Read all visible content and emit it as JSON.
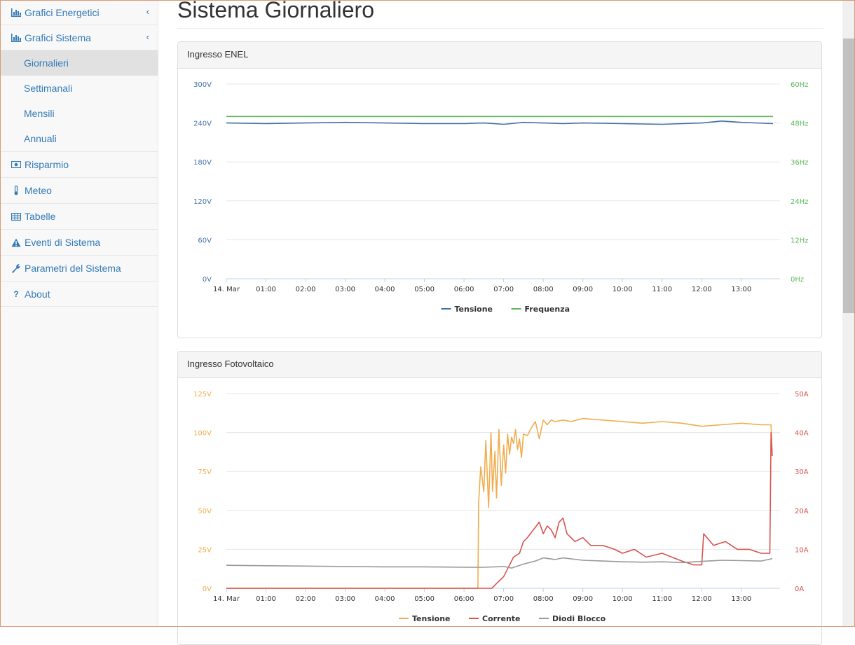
{
  "sidebar": {
    "items": [
      {
        "label": "Grafici Energetici",
        "icon": "bar-chart-icon",
        "chevron": "‹"
      },
      {
        "label": "Grafici Sistema",
        "icon": "bar-chart-icon",
        "chevron": "‹"
      },
      {
        "label": "Risparmio",
        "icon": "money-icon"
      },
      {
        "label": "Meteo",
        "icon": "thermometer-icon"
      },
      {
        "label": "Tabelle",
        "icon": "table-icon"
      },
      {
        "label": "Eventi di Sistema",
        "icon": "warning-icon"
      },
      {
        "label": "Parametri del Sistema",
        "icon": "wrench-icon"
      },
      {
        "label": "About",
        "icon": "question-icon"
      }
    ],
    "sub_items": [
      "Giornalieri",
      "Settimanali",
      "Mensili",
      "Annuali"
    ],
    "active_sub": "Giornalieri"
  },
  "page": {
    "title": "Sistema Giornaliero"
  },
  "panels": {
    "enel": {
      "title": "Ingresso ENEL"
    },
    "pv": {
      "title": "Ingresso Fotovoltaico"
    }
  },
  "colors": {
    "blue": "#4572a7",
    "green": "#5cb85c",
    "orange": "#f0ad4e",
    "red": "#d9534f",
    "gray": "#999999",
    "link": "#337ab7"
  },
  "chart_data": [
    {
      "type": "line",
      "title": "",
      "x_ticks": [
        "14. Mar",
        "01:00",
        "02:00",
        "03:00",
        "04:00",
        "05:00",
        "06:00",
        "07:00",
        "08:00",
        "09:00",
        "10:00",
        "11:00",
        "12:00",
        "13:00"
      ],
      "y_left": {
        "ticks": [
          "300V",
          "240V",
          "180V",
          "120V",
          "60V",
          "0V"
        ],
        "range": [
          0,
          300
        ],
        "unit": "V"
      },
      "y_right": {
        "ticks": [
          "60Hz",
          "48Hz",
          "36Hz",
          "24Hz",
          "12Hz",
          "0Hz"
        ],
        "range": [
          0,
          60
        ],
        "unit": "Hz"
      },
      "x_range": [
        0,
        13.8
      ],
      "legend": "bottom-center",
      "series": [
        {
          "name": "Tensione",
          "axis": "left",
          "color": "#4572a7",
          "x": [
            0,
            1,
            2,
            3,
            4,
            5,
            6,
            6.5,
            7,
            7.5,
            8,
            8.5,
            9,
            10,
            11,
            12,
            12.5,
            13,
            13.8
          ],
          "y": [
            240,
            239,
            240,
            241,
            240,
            239,
            239,
            240,
            238,
            241,
            240,
            239,
            240,
            239,
            238,
            240,
            243,
            241,
            239
          ]
        },
        {
          "name": "Frequenza",
          "axis": "right",
          "color": "#5cb85c",
          "x": [
            0,
            13.8
          ],
          "y": [
            50,
            50
          ]
        }
      ]
    },
    {
      "type": "line",
      "title": "",
      "x_ticks": [
        "14. Mar",
        "01:00",
        "02:00",
        "03:00",
        "04:00",
        "05:00",
        "06:00",
        "07:00",
        "08:00",
        "09:00",
        "10:00",
        "11:00",
        "12:00",
        "13:00"
      ],
      "y_left": {
        "ticks": [
          "125V",
          "100V",
          "75V",
          "50V",
          "25V",
          "0V"
        ],
        "range": [
          0,
          125
        ],
        "unit": "V"
      },
      "y_right": {
        "ticks": [
          "50A",
          "40A",
          "30A",
          "20A",
          "10A",
          "0A"
        ],
        "range": [
          0,
          50
        ],
        "unit": "A"
      },
      "x_range": [
        0,
        13.8
      ],
      "legend": "bottom-center",
      "series": [
        {
          "name": "Tensione",
          "axis": "left",
          "color": "#f0ad4e",
          "x": [
            0,
            6.35,
            6.37,
            6.42,
            6.5,
            6.55,
            6.62,
            6.68,
            6.72,
            6.78,
            6.82,
            6.88,
            6.94,
            7.0,
            7.05,
            7.1,
            7.15,
            7.2,
            7.25,
            7.3,
            7.35,
            7.4,
            7.45,
            7.5,
            7.6,
            7.7,
            7.8,
            7.9,
            8.0,
            8.1,
            8.2,
            8.3,
            8.5,
            8.7,
            9,
            9.5,
            10,
            10.5,
            11,
            11.5,
            12,
            12.5,
            13,
            13.5,
            13.75,
            13.78
          ],
          "y": [
            0,
            0,
            55,
            78,
            62,
            95,
            52,
            100,
            62,
            88,
            58,
            102,
            66,
            92,
            74,
            99,
            86,
            97,
            93,
            102,
            89,
            96,
            84,
            99,
            98,
            103,
            107,
            96,
            108,
            105,
            108,
            107,
            108,
            107,
            109,
            108,
            107,
            106,
            107,
            106,
            104,
            105,
            106,
            105,
            105,
            85
          ]
        },
        {
          "name": "Corrente",
          "axis": "right",
          "color": "#d9534f",
          "x": [
            0,
            6.4,
            6.5,
            6.7,
            6.8,
            7.0,
            7.1,
            7.25,
            7.4,
            7.5,
            7.6,
            7.75,
            7.9,
            8.0,
            8.1,
            8.2,
            8.3,
            8.4,
            8.5,
            8.6,
            8.7,
            8.8,
            9.0,
            9.2,
            9.5,
            9.8,
            10.0,
            10.3,
            10.6,
            11.0,
            11.5,
            11.8,
            12.0,
            12.05,
            12.3,
            12.6,
            12.9,
            13.2,
            13.5,
            13.72,
            13.75,
            13.78
          ],
          "y": [
            0,
            0,
            0,
            0,
            1,
            3,
            5,
            8,
            9,
            12,
            13,
            15,
            17,
            14,
            16,
            15,
            13,
            17,
            18,
            14,
            13,
            12,
            13,
            11,
            11,
            10,
            9,
            10,
            8,
            9,
            7,
            6,
            6,
            14,
            11,
            12,
            10,
            10,
            9,
            9,
            40,
            34
          ]
        },
        {
          "name": "Diodi Blocco",
          "axis": "right",
          "color": "#999999",
          "x": [
            0,
            1,
            2,
            3,
            4,
            5,
            6,
            6.5,
            7,
            7.2,
            7.5,
            7.8,
            8.0,
            8.3,
            8.5,
            9,
            9.5,
            10,
            10.5,
            11,
            11.5,
            12,
            12.5,
            13,
            13.5,
            13.78
          ],
          "y": [
            5.9,
            5.8,
            5.7,
            5.6,
            5.5,
            5.5,
            5.4,
            5.4,
            5.6,
            5.2,
            6.2,
            7.0,
            7.8,
            7.4,
            7.8,
            7.2,
            7.0,
            6.8,
            6.7,
            6.8,
            6.6,
            6.9,
            7.2,
            7.1,
            7.0,
            7.6
          ]
        }
      ]
    }
  ]
}
